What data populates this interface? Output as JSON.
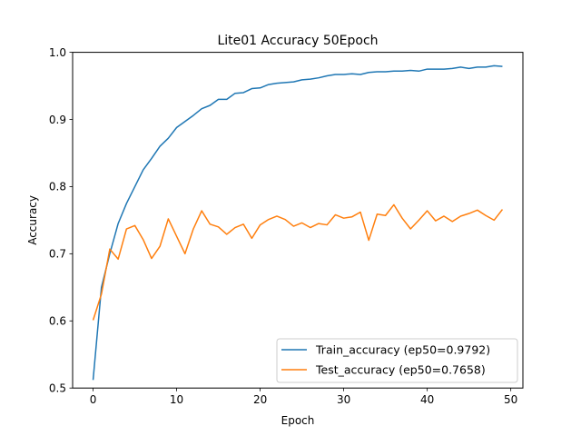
{
  "chart_data": {
    "type": "line",
    "title": "Lite01 Accuracy 50Epoch",
    "xlabel": "Epoch",
    "ylabel": "Accuracy",
    "xlim": [
      -2.45,
      51.45
    ],
    "ylim": [
      0.5,
      1.0
    ],
    "xticks": [
      0,
      10,
      20,
      30,
      40,
      50
    ],
    "yticks": [
      0.5,
      0.6,
      0.7,
      0.8,
      0.9,
      1.0
    ],
    "grid": false,
    "legend_position": "lower-right",
    "x": [
      0,
      1,
      2,
      3,
      4,
      5,
      6,
      7,
      8,
      9,
      10,
      11,
      12,
      13,
      14,
      15,
      16,
      17,
      18,
      19,
      20,
      21,
      22,
      23,
      24,
      25,
      26,
      27,
      28,
      29,
      30,
      31,
      32,
      33,
      34,
      35,
      36,
      37,
      38,
      39,
      40,
      41,
      42,
      43,
      44,
      45,
      46,
      47,
      48,
      49
    ],
    "series": [
      {
        "name": "Train_accuracy (ep50=0.9792)",
        "color": "#1f77b4",
        "values": [
          0.512,
          0.65,
          0.7,
          0.745,
          0.775,
          0.8,
          0.825,
          0.842,
          0.86,
          0.872,
          0.888,
          0.897,
          0.906,
          0.916,
          0.921,
          0.93,
          0.93,
          0.939,
          0.94,
          0.946,
          0.947,
          0.952,
          0.954,
          0.955,
          0.956,
          0.959,
          0.96,
          0.962,
          0.965,
          0.967,
          0.967,
          0.968,
          0.967,
          0.97,
          0.971,
          0.971,
          0.972,
          0.972,
          0.973,
          0.972,
          0.975,
          0.975,
          0.975,
          0.976,
          0.978,
          0.976,
          0.978,
          0.978,
          0.98,
          0.979
        ]
      },
      {
        "name": "Test_accuracy (ep50=0.7658)",
        "color": "#ff7f0e",
        "values": [
          0.601,
          0.64,
          0.707,
          0.692,
          0.737,
          0.742,
          0.721,
          0.693,
          0.711,
          0.752,
          0.726,
          0.7,
          0.737,
          0.764,
          0.744,
          0.74,
          0.729,
          0.739,
          0.744,
          0.723,
          0.743,
          0.751,
          0.756,
          0.751,
          0.741,
          0.746,
          0.739,
          0.745,
          0.743,
          0.758,
          0.753,
          0.755,
          0.762,
          0.72,
          0.759,
          0.757,
          0.773,
          0.753,
          0.737,
          0.75,
          0.764,
          0.749,
          0.756,
          0.748,
          0.756,
          0.76,
          0.765,
          0.757,
          0.75,
          0.766
        ]
      }
    ]
  }
}
